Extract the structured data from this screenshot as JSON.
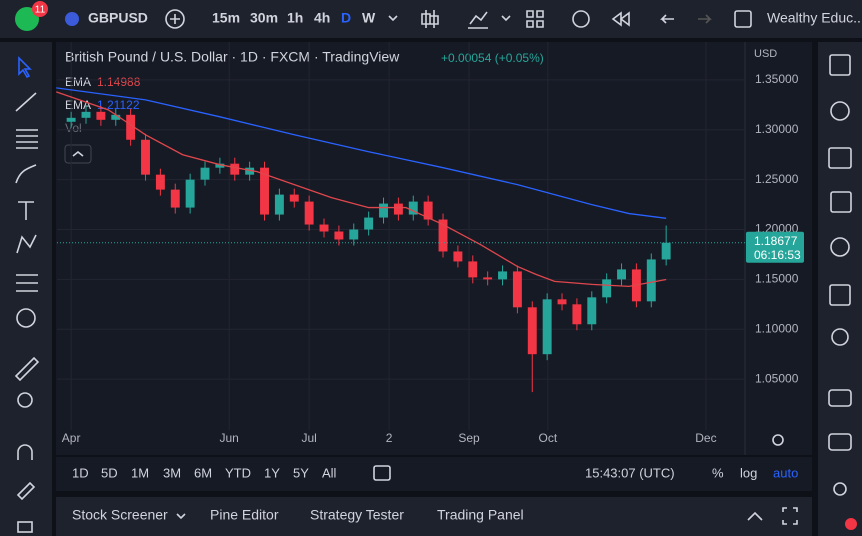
{
  "toolbar": {
    "badge": "11",
    "symbol": "GBPUSD",
    "intervals": [
      "15m",
      "30m",
      "1h",
      "4h",
      "D",
      "W"
    ],
    "account": "Wealthy Educ..."
  },
  "chart_data": {
    "type": "candlestick",
    "title": "British Pound / U.S. Dollar · 1D · FXCM · TradingView",
    "change": "+0.00054 (+0.05%)",
    "legend": [
      {
        "name": "EMA",
        "value": "1.14988"
      },
      {
        "name": "EMA",
        "value": "1.21122"
      },
      {
        "name": "Vol"
      }
    ],
    "currency": "USD",
    "x": [
      0,
      4,
      8,
      12,
      16,
      20,
      24,
      28,
      32,
      36,
      40,
      44,
      48,
      52,
      56,
      60,
      64,
      68,
      72,
      76,
      80,
      84,
      88,
      92,
      96,
      100,
      104,
      108,
      112,
      116,
      120,
      124,
      128,
      132,
      136,
      140,
      144,
      148,
      152,
      156,
      160
    ],
    "open": [
      1.308,
      1.312,
      1.318,
      1.31,
      1.315,
      1.29,
      1.255,
      1.24,
      1.222,
      1.25,
      1.262,
      1.266,
      1.255,
      1.262,
      1.215,
      1.235,
      1.228,
      1.205,
      1.198,
      1.19,
      1.2,
      1.212,
      1.226,
      1.215,
      1.228,
      1.21,
      1.178,
      1.168,
      1.152,
      1.15,
      1.158,
      1.122,
      1.075,
      1.13,
      1.125,
      1.105,
      1.132,
      1.15,
      1.16,
      1.128,
      1.17
    ],
    "high": [
      1.318,
      1.324,
      1.324,
      1.321,
      1.321,
      1.296,
      1.261,
      1.246,
      1.256,
      1.268,
      1.272,
      1.272,
      1.268,
      1.268,
      1.241,
      1.241,
      1.234,
      1.211,
      1.204,
      1.206,
      1.218,
      1.232,
      1.232,
      1.234,
      1.234,
      1.216,
      1.184,
      1.174,
      1.158,
      1.164,
      1.164,
      1.128,
      1.136,
      1.136,
      1.131,
      1.138,
      1.156,
      1.166,
      1.166,
      1.176,
      1.204
    ],
    "low": [
      1.302,
      1.306,
      1.304,
      1.304,
      1.284,
      1.249,
      1.234,
      1.216,
      1.216,
      1.244,
      1.256,
      1.249,
      1.249,
      1.209,
      1.209,
      1.222,
      1.199,
      1.192,
      1.184,
      1.184,
      1.194,
      1.206,
      1.209,
      1.209,
      1.204,
      1.172,
      1.162,
      1.146,
      1.144,
      1.144,
      1.116,
      1.037,
      1.069,
      1.119,
      1.099,
      1.099,
      1.126,
      1.144,
      1.122,
      1.122,
      1.164
    ],
    "close": [
      1.312,
      1.318,
      1.31,
      1.315,
      1.29,
      1.255,
      1.24,
      1.222,
      1.25,
      1.262,
      1.266,
      1.255,
      1.262,
      1.215,
      1.235,
      1.228,
      1.205,
      1.198,
      1.19,
      1.2,
      1.212,
      1.226,
      1.215,
      1.228,
      1.21,
      1.178,
      1.168,
      1.152,
      1.15,
      1.158,
      1.122,
      1.075,
      1.13,
      1.125,
      1.105,
      1.132,
      1.15,
      1.16,
      1.128,
      1.17,
      1.18677
    ],
    "up_color": "#26a69a",
    "down_color": "#f23645",
    "lines": [
      {
        "name": "EMA",
        "color": "#e0474c",
        "x": [
          -4,
          10,
          20,
          30,
          40,
          50,
          60,
          70,
          80,
          90,
          100,
          110,
          120,
          125,
          130,
          140,
          150,
          160
        ],
        "values": [
          1.338,
          1.32,
          1.295,
          1.275,
          1.265,
          1.258,
          1.245,
          1.232,
          1.222,
          1.222,
          1.205,
          1.185,
          1.163,
          1.155,
          1.148,
          1.145,
          1.143,
          1.14988
        ]
      },
      {
        "name": "EMA",
        "color": "#2962ff",
        "x": [
          -4,
          20,
          40,
          60,
          80,
          100,
          120,
          140,
          150,
          160
        ],
        "values": [
          1.342,
          1.33,
          1.313,
          1.295,
          1.278,
          1.262,
          1.245,
          1.225,
          1.216,
          1.21122
        ]
      }
    ],
    "last_price": {
      "value": 1.18677,
      "label": "1.18677"
    },
    "countdown": "06:16:53",
    "xlim": [
      -3.8,
      181.2
    ],
    "xticks": [
      {
        "value": 0,
        "label": "Apr"
      },
      {
        "value": 42.5,
        "label": "Jun"
      },
      {
        "value": 64,
        "label": "Jul"
      },
      {
        "value": 85.5,
        "label": "2"
      },
      {
        "value": 107,
        "label": "Sep"
      },
      {
        "value": 128.2,
        "label": "Oct"
      },
      {
        "value": 170.7,
        "label": "Dec"
      }
    ],
    "ylim": [
      1.001,
      1.385
    ],
    "yticks": [
      {
        "value": 1.05,
        "label": "1.05000"
      },
      {
        "value": 1.1,
        "label": "1.10000"
      },
      {
        "value": 1.15,
        "label": "1.15000"
      },
      {
        "value": 1.2,
        "label": "1.20000"
      },
      {
        "value": 1.25,
        "label": "1.25000"
      },
      {
        "value": 1.3,
        "label": "1.30000"
      },
      {
        "value": 1.35,
        "label": "1.35000"
      }
    ],
    "grid": true
  },
  "range_bar": {
    "ranges": [
      "1D",
      "5D",
      "1M",
      "3M",
      "6M",
      "YTD",
      "1Y",
      "5Y",
      "All"
    ],
    "clock": "15:43:07 (UTC)",
    "percent": "%",
    "log": "log",
    "auto": "auto"
  },
  "bottom_panel": {
    "tabs": [
      "Stock Screener",
      "Pine Editor",
      "Strategy Tester",
      "Trading Panel"
    ]
  }
}
